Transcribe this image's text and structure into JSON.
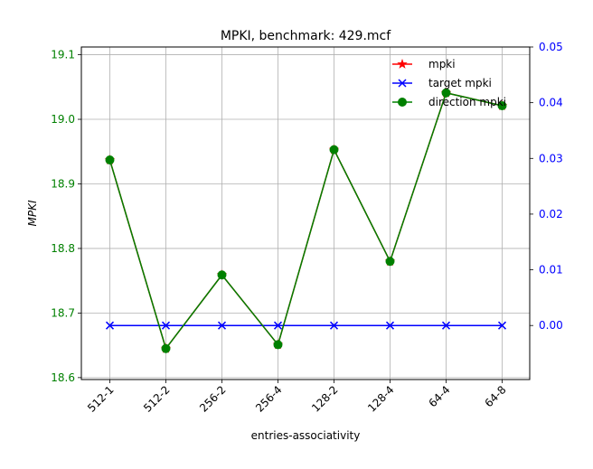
{
  "chart_data": {
    "type": "line",
    "title": "MPKI, benchmark: 429.mcf",
    "xlabel": "entries-associativity",
    "ylabel": "MPKI",
    "categories": [
      "512-1",
      "512-2",
      "256-2",
      "256-4",
      "128-2",
      "128-4",
      "64-4",
      "64-8"
    ],
    "y_left": {
      "range": [
        18.597,
        19.112
      ],
      "ticks": [
        "18.6",
        "18.7",
        "18.8",
        "18.9",
        "19.0",
        "19.1"
      ],
      "color": "#008000"
    },
    "y_right": {
      "range": [
        -0.0097,
        0.05
      ],
      "ticks": [
        "0.00",
        "0.01",
        "0.02",
        "0.03",
        "0.04",
        "0.05"
      ],
      "color": "#0000ff"
    },
    "grid": true,
    "legend_position": "top-right",
    "series": [
      {
        "name": "mpki",
        "axis": "left",
        "color": "#ff0000",
        "marker": "star",
        "values": [
          18.937,
          18.645,
          18.759,
          18.651,
          18.953,
          18.78,
          19.041,
          19.021
        ]
      },
      {
        "name": "target mpki",
        "axis": "right",
        "color": "#0000ff",
        "marker": "x",
        "values": [
          0,
          0,
          0,
          0,
          0,
          0,
          0,
          0
        ]
      },
      {
        "name": "direction mpki",
        "axis": "left",
        "color": "#008000",
        "marker": "circle",
        "values": [
          18.937,
          18.645,
          18.759,
          18.651,
          18.953,
          18.78,
          19.041,
          19.021
        ]
      }
    ]
  }
}
